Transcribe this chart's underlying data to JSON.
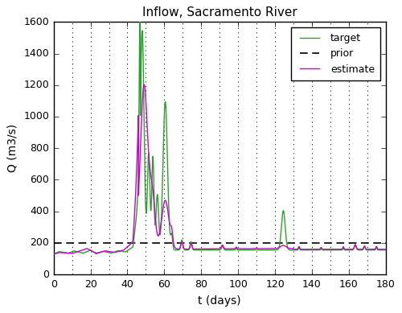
{
  "title": "Inflow, Sacramento River",
  "xlabel": "t (days)",
  "ylabel": "Q (m3/s)",
  "xlim": [
    0,
    180
  ],
  "ylim": [
    0,
    1600
  ],
  "xticks": [
    0,
    20,
    40,
    60,
    80,
    100,
    120,
    140,
    160,
    180
  ],
  "yticks": [
    0,
    200,
    400,
    600,
    800,
    1000,
    1200,
    1400,
    1600
  ],
  "prior_value": 200,
  "vline_positions": [
    10,
    20,
    30,
    40,
    50,
    60,
    70,
    80,
    90,
    100,
    110,
    120,
    130,
    140,
    150,
    160,
    170,
    180
  ],
  "target_color": "#2ca02c",
  "estimate_color": "#cc00cc",
  "prior_color": "#000000",
  "line_width": 1.0,
  "figsize": [
    5.0,
    3.89
  ],
  "dpi": 100,
  "legend_labels": [
    "target",
    "prior",
    "estimate"
  ],
  "legend_loc": "upper right",
  "bg_color": "#e8e8e8",
  "fig_bg_color": "#ffffff"
}
